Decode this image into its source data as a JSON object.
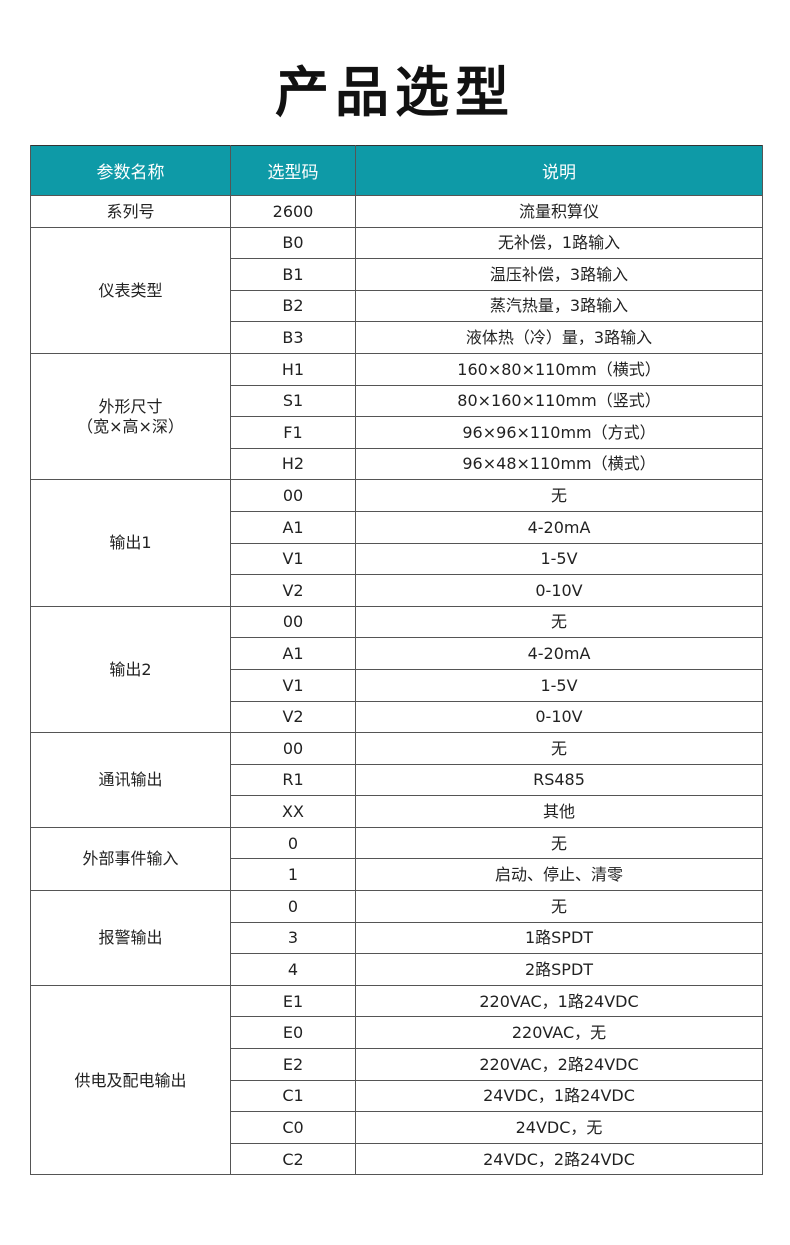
{
  "title": "产品选型",
  "headers": [
    "参数名称",
    "选型码",
    "说明"
  ],
  "groups": [
    {
      "name": "系列号",
      "rows": [
        [
          "2600",
          "流量积算仪"
        ]
      ]
    },
    {
      "name": "仪表类型",
      "rows": [
        [
          "B0",
          "无补偿，1路输入"
        ],
        [
          "B1",
          "温压补偿，3路输入"
        ],
        [
          "B2",
          "蒸汽热量，3路输入"
        ],
        [
          "B3",
          "液体热（冷）量，3路输入"
        ]
      ]
    },
    {
      "name": "外形尺寸\n（宽×高×深）",
      "rows": [
        [
          "H1",
          "160×80×110mm（横式）"
        ],
        [
          "S1",
          "80×160×110mm（竖式）"
        ],
        [
          "F1",
          "96×96×110mm（方式）"
        ],
        [
          "H2",
          "96×48×110mm（横式）"
        ]
      ]
    },
    {
      "name": "输出1",
      "rows": [
        [
          "00",
          "无"
        ],
        [
          "A1",
          "4-20mA"
        ],
        [
          "V1",
          "1-5V"
        ],
        [
          "V2",
          "0-10V"
        ]
      ]
    },
    {
      "name": "输出2",
      "rows": [
        [
          "00",
          "无"
        ],
        [
          "A1",
          "4-20mA"
        ],
        [
          "V1",
          "1-5V"
        ],
        [
          "V2",
          "0-10V"
        ]
      ]
    },
    {
      "name": "通讯输出",
      "rows": [
        [
          "00",
          "无"
        ],
        [
          "R1",
          "RS485"
        ],
        [
          "XX",
          "其他"
        ]
      ]
    },
    {
      "name": "外部事件输入",
      "rows": [
        [
          "0",
          "无"
        ],
        [
          "1",
          "启动、停止、清零"
        ]
      ]
    },
    {
      "name": "报警输出",
      "rows": [
        [
          "0",
          "无"
        ],
        [
          "3",
          "1路SPDT"
        ],
        [
          "4",
          "2路SPDT"
        ]
      ]
    },
    {
      "name": "供电及配电输出",
      "rows": [
        [
          "E1",
          "220VAC，1路24VDC"
        ],
        [
          "E0",
          "220VAC，无"
        ],
        [
          "E2",
          "220VAC，2路24VDC"
        ],
        [
          "C1",
          "24VDC，1路24VDC"
        ],
        [
          "C0",
          "24VDC，无"
        ],
        [
          "C2",
          "24VDC，2路24VDC"
        ]
      ]
    }
  ],
  "colors": {
    "header": "#0e9aa7"
  }
}
